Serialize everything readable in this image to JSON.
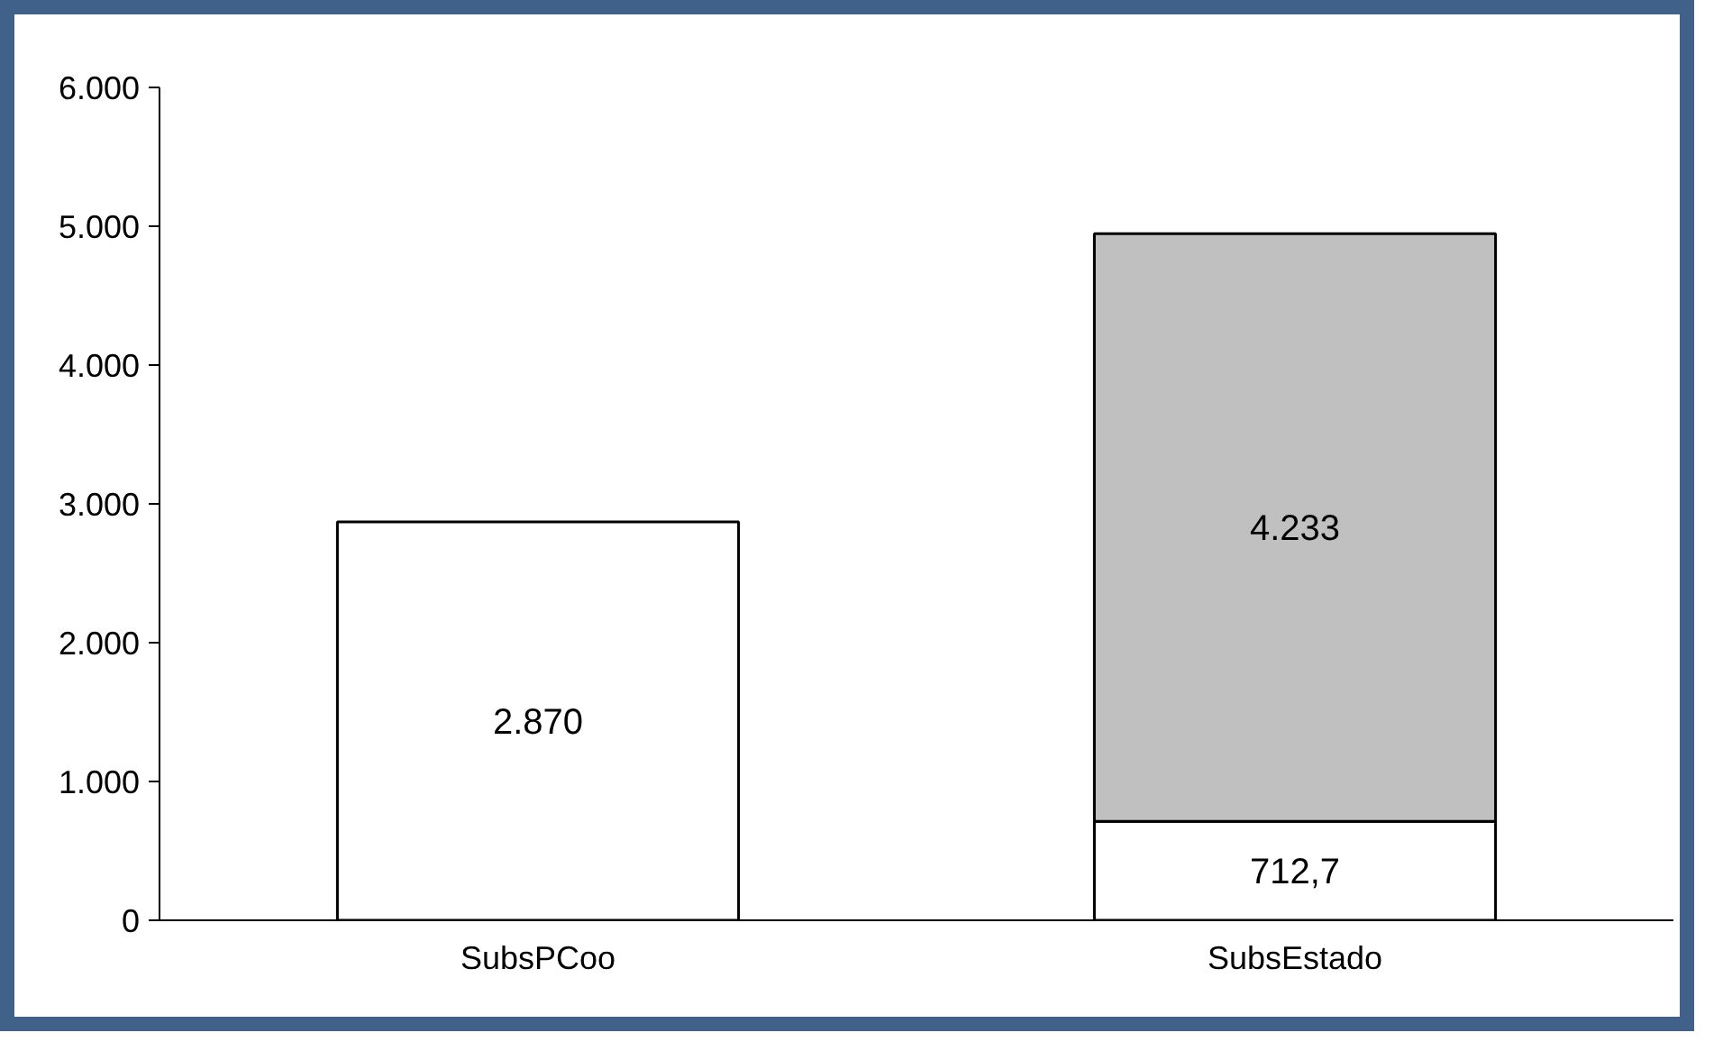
{
  "chart_data": {
    "type": "bar",
    "stacked": true,
    "categories": [
      "SubsPCoo",
      "SubsEstado"
    ],
    "series": [
      {
        "color": "#ffffff",
        "values": [
          2870,
          712.7
        ],
        "value_labels": [
          "2.870",
          "712,7"
        ]
      },
      {
        "color": "#c0c0c0",
        "values": [
          null,
          4233
        ],
        "value_labels": [
          null,
          "4.233"
        ]
      }
    ],
    "ylim": [
      0,
      6000
    ],
    "yticks": [
      0,
      {
        "value": 1000,
        "label": "1.000"
      },
      {
        "value": 2000,
        "label": "2.000"
      },
      {
        "value": 3000,
        "label": "3.000"
      },
      {
        "value": 4000,
        "label": "4.000"
      },
      {
        "value": 5000,
        "label": "5.000"
      },
      {
        "value": 6000,
        "label": "6.000"
      }
    ],
    "grid": false
  }
}
